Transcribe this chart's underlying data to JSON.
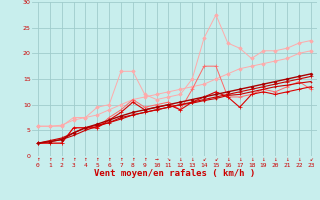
{
  "xlabel": "Vent moyen/en rafales ( km/h )",
  "xlim": [
    -0.5,
    23.5
  ],
  "ylim": [
    0,
    30
  ],
  "xticks": [
    0,
    1,
    2,
    3,
    4,
    5,
    6,
    7,
    8,
    9,
    10,
    11,
    12,
    13,
    14,
    15,
    16,
    17,
    18,
    19,
    20,
    21,
    22,
    23
  ],
  "yticks": [
    0,
    5,
    10,
    15,
    20,
    25,
    30
  ],
  "bg_color": "#c8eeed",
  "grid_color": "#a0cccc",
  "series": [
    {
      "color": "#ffaaaa",
      "lw": 0.7,
      "marker": "D",
      "ms": 1.8,
      "data": [
        [
          0,
          5.8
        ],
        [
          1,
          5.8
        ],
        [
          2,
          5.8
        ],
        [
          3,
          7.5
        ],
        [
          4,
          7.5
        ],
        [
          5,
          9.5
        ],
        [
          6,
          10.0
        ],
        [
          7,
          16.5
        ],
        [
          8,
          16.5
        ],
        [
          9,
          12.0
        ],
        [
          10,
          11.0
        ],
        [
          11,
          11.5
        ],
        [
          12,
          12.0
        ],
        [
          13,
          15.0
        ],
        [
          14,
          23.0
        ],
        [
          15,
          27.5
        ],
        [
          16,
          22.0
        ],
        [
          17,
          21.0
        ],
        [
          18,
          19.0
        ],
        [
          19,
          20.5
        ],
        [
          20,
          20.5
        ],
        [
          21,
          21.0
        ],
        [
          22,
          22.0
        ],
        [
          23,
          22.5
        ]
      ]
    },
    {
      "color": "#ffaaaa",
      "lw": 0.7,
      "marker": "D",
      "ms": 1.8,
      "data": [
        [
          0,
          5.8
        ],
        [
          1,
          5.8
        ],
        [
          2,
          6.0
        ],
        [
          3,
          7.0
        ],
        [
          4,
          7.5
        ],
        [
          5,
          8.0
        ],
        [
          6,
          9.0
        ],
        [
          7,
          10.0
        ],
        [
          8,
          11.0
        ],
        [
          9,
          11.5
        ],
        [
          10,
          12.0
        ],
        [
          11,
          12.5
        ],
        [
          12,
          13.0
        ],
        [
          13,
          13.5
        ],
        [
          14,
          14.0
        ],
        [
          15,
          15.0
        ],
        [
          16,
          16.0
        ],
        [
          17,
          17.0
        ],
        [
          18,
          17.5
        ],
        [
          19,
          18.0
        ],
        [
          20,
          18.5
        ],
        [
          21,
          19.0
        ],
        [
          22,
          20.0
        ],
        [
          23,
          20.5
        ]
      ]
    },
    {
      "color": "#ff6666",
      "lw": 0.7,
      "marker": "+",
      "ms": 2.5,
      "data": [
        [
          0,
          2.5
        ],
        [
          1,
          2.5
        ],
        [
          2,
          2.5
        ],
        [
          3,
          5.5
        ],
        [
          4,
          5.5
        ],
        [
          5,
          5.5
        ],
        [
          6,
          7.5
        ],
        [
          7,
          9.0
        ],
        [
          8,
          11.0
        ],
        [
          9,
          9.5
        ],
        [
          10,
          10.0
        ],
        [
          11,
          10.5
        ],
        [
          12,
          9.0
        ],
        [
          13,
          13.0
        ],
        [
          14,
          17.5
        ],
        [
          15,
          17.5
        ],
        [
          16,
          11.5
        ],
        [
          17,
          11.5
        ],
        [
          18,
          12.0
        ],
        [
          19,
          13.0
        ],
        [
          20,
          12.5
        ],
        [
          21,
          13.5
        ],
        [
          22,
          14.5
        ],
        [
          23,
          13.0
        ]
      ]
    },
    {
      "color": "#dd0000",
      "lw": 0.8,
      "marker": "+",
      "ms": 2.5,
      "data": [
        [
          0,
          2.5
        ],
        [
          1,
          2.5
        ],
        [
          2,
          2.5
        ],
        [
          3,
          5.5
        ],
        [
          4,
          5.5
        ],
        [
          5,
          5.5
        ],
        [
          6,
          7.0
        ],
        [
          7,
          8.5
        ],
        [
          8,
          10.5
        ],
        [
          9,
          9.0
        ],
        [
          10,
          9.5
        ],
        [
          11,
          10.0
        ],
        [
          12,
          9.0
        ],
        [
          13,
          10.5
        ],
        [
          14,
          11.5
        ],
        [
          15,
          12.5
        ],
        [
          16,
          11.5
        ],
        [
          17,
          9.5
        ],
        [
          18,
          12.0
        ],
        [
          19,
          12.5
        ],
        [
          20,
          12.0
        ],
        [
          21,
          12.5
        ],
        [
          22,
          13.0
        ],
        [
          23,
          13.5
        ]
      ]
    },
    {
      "color": "#cc0000",
      "lw": 0.8,
      "marker": "+",
      "ms": 2.5,
      "data": [
        [
          0,
          2.5
        ],
        [
          1,
          3.0
        ],
        [
          2,
          3.5
        ],
        [
          3,
          4.5
        ],
        [
          4,
          5.5
        ],
        [
          5,
          6.0
        ],
        [
          6,
          6.5
        ],
        [
          7,
          7.5
        ],
        [
          8,
          8.0
        ],
        [
          9,
          8.5
        ],
        [
          10,
          9.0
        ],
        [
          11,
          9.5
        ],
        [
          12,
          10.0
        ],
        [
          13,
          10.5
        ],
        [
          14,
          11.0
        ],
        [
          15,
          11.5
        ],
        [
          16,
          12.0
        ],
        [
          17,
          12.5
        ],
        [
          18,
          13.0
        ],
        [
          19,
          13.5
        ],
        [
          20,
          14.0
        ],
        [
          21,
          14.5
        ],
        [
          22,
          15.0
        ],
        [
          23,
          15.5
        ]
      ]
    },
    {
      "color": "#cc0000",
      "lw": 0.8,
      "marker": "+",
      "ms": 2.0,
      "data": [
        [
          0,
          2.5
        ],
        [
          1,
          2.8
        ],
        [
          2,
          3.2
        ],
        [
          3,
          4.0
        ],
        [
          4,
          5.0
        ],
        [
          5,
          5.8
        ],
        [
          6,
          6.5
        ],
        [
          7,
          7.2
        ],
        [
          8,
          8.0
        ],
        [
          9,
          8.5
        ],
        [
          10,
          9.0
        ],
        [
          11,
          9.5
        ],
        [
          12,
          10.0
        ],
        [
          13,
          10.3
        ],
        [
          14,
          10.8
        ],
        [
          15,
          11.2
        ],
        [
          16,
          11.8
        ],
        [
          17,
          12.0
        ],
        [
          18,
          12.5
        ],
        [
          19,
          13.0
        ],
        [
          20,
          13.5
        ],
        [
          21,
          13.8
        ],
        [
          22,
          14.2
        ],
        [
          23,
          14.5
        ]
      ]
    },
    {
      "color": "#aa0000",
      "lw": 1.0,
      "marker": "D",
      "ms": 1.5,
      "data": [
        [
          0,
          2.5
        ],
        [
          1,
          2.8
        ],
        [
          2,
          3.2
        ],
        [
          3,
          4.5
        ],
        [
          4,
          5.5
        ],
        [
          5,
          6.2
        ],
        [
          6,
          7.0
        ],
        [
          7,
          7.8
        ],
        [
          8,
          8.5
        ],
        [
          9,
          9.0
        ],
        [
          10,
          9.5
        ],
        [
          11,
          10.0
        ],
        [
          12,
          10.5
        ],
        [
          13,
          11.0
        ],
        [
          14,
          11.5
        ],
        [
          15,
          12.0
        ],
        [
          16,
          12.5
        ],
        [
          17,
          13.0
        ],
        [
          18,
          13.5
        ],
        [
          19,
          14.0
        ],
        [
          20,
          14.5
        ],
        [
          21,
          15.0
        ],
        [
          22,
          15.5
        ],
        [
          23,
          16.0
        ]
      ]
    }
  ],
  "arrow_labels": [
    "↑",
    "↑",
    "↑",
    "↑",
    "↑",
    "↑",
    "↑",
    "↑",
    "↑",
    "↑",
    "→",
    "↘",
    "↓",
    "↓",
    "↙",
    "↙",
    "↓",
    "↓",
    "↓",
    "↓",
    "↓",
    "↓",
    "↓",
    "↙"
  ],
  "font_color": "#cc0000",
  "tick_fontsize": 4.5,
  "xlabel_fontsize": 6.5
}
